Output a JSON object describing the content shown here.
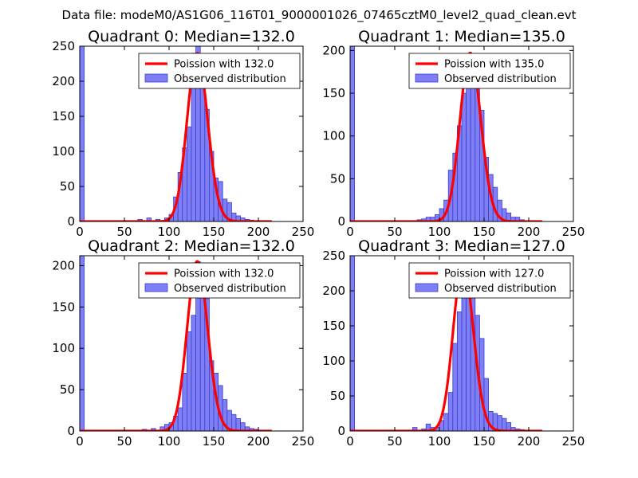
{
  "figure": {
    "suptitle": "Data file: modeM0/AS1G06_116T01_9000001026_07465cztM0_level2_quad_clean.evt"
  },
  "colors": {
    "bar_fill": "#7f7ff5",
    "bar_edge": "#3c3cd0",
    "poisson_line": "#ff0000"
  },
  "chart_data": [
    {
      "type": "bar",
      "title": "Quadrant 0: Median=132.0",
      "median": 132.0,
      "xlim": [
        0,
        250
      ],
      "ylim": [
        0,
        250
      ],
      "xticks": [
        0,
        50,
        100,
        150,
        200,
        250
      ],
      "yticks": [
        0,
        50,
        100,
        150,
        200,
        250
      ],
      "bin_width": 5,
      "histogram": {
        "name": "Observed distribution",
        "bin_starts": [
          0,
          65,
          75,
          85,
          95,
          100,
          105,
          110,
          115,
          120,
          125,
          130,
          135,
          140,
          145,
          150,
          155,
          160,
          165,
          170,
          175,
          180,
          185,
          190
        ],
        "counts": [
          250,
          3,
          5,
          3,
          5,
          10,
          35,
          70,
          105,
          135,
          240,
          250,
          190,
          160,
          100,
          62,
          57,
          32,
          27,
          12,
          8,
          5,
          3,
          2
        ]
      },
      "poisson": {
        "name": "Poission with 132.0",
        "mu": 132.0,
        "peak": 240
      },
      "legend": {
        "location": "upper right",
        "entries": [
          "Poission with 132.0",
          "Observed distribution"
        ]
      }
    },
    {
      "type": "bar",
      "title": "Quadrant 1: Median=135.0",
      "median": 135.0,
      "xlim": [
        0,
        250
      ],
      "ylim": [
        0,
        205
      ],
      "xticks": [
        0,
        50,
        100,
        150,
        200,
        250
      ],
      "yticks": [
        0,
        50,
        100,
        150,
        200
      ],
      "bin_width": 5,
      "histogram": {
        "name": "Observed distribution",
        "bin_starts": [
          0,
          75,
          80,
          85,
          90,
          95,
          100,
          105,
          110,
          115,
          120,
          125,
          130,
          135,
          140,
          145,
          150,
          155,
          160,
          165,
          170,
          175,
          180,
          185,
          190
        ],
        "counts": [
          205,
          2,
          3,
          5,
          5,
          8,
          15,
          25,
          60,
          80,
          112,
          150,
          195,
          175,
          160,
          130,
          75,
          55,
          40,
          25,
          15,
          10,
          5,
          5,
          2
        ]
      },
      "poisson": {
        "name": "Poission with 135.0",
        "mu": 135.0,
        "peak": 197
      },
      "legend": {
        "location": "upper right",
        "entries": [
          "Poission with 135.0",
          "Observed distribution"
        ]
      }
    },
    {
      "type": "bar",
      "title": "Quadrant 2: Median=132.0",
      "median": 132.0,
      "xlim": [
        0,
        250
      ],
      "ylim": [
        0,
        212
      ],
      "xticks": [
        0,
        50,
        100,
        150,
        200,
        250
      ],
      "yticks": [
        0,
        50,
        100,
        150,
        200
      ],
      "bin_width": 5,
      "histogram": {
        "name": "Observed distribution",
        "bin_starts": [
          0,
          70,
          80,
          90,
          95,
          100,
          105,
          110,
          115,
          120,
          125,
          130,
          135,
          140,
          145,
          150,
          155,
          160,
          165,
          170,
          175,
          180,
          185,
          190,
          195
        ],
        "counts": [
          212,
          2,
          3,
          5,
          8,
          10,
          18,
          28,
          70,
          120,
          140,
          205,
          200,
          160,
          85,
          70,
          55,
          38,
          25,
          20,
          15,
          10,
          5,
          3,
          2
        ]
      },
      "poisson": {
        "name": "Poission with 132.0",
        "mu": 132.0,
        "peak": 205
      },
      "legend": {
        "location": "upper right",
        "entries": [
          "Poission with 132.0",
          "Observed distribution"
        ]
      }
    },
    {
      "type": "bar",
      "title": "Quadrant 3: Median=127.0",
      "median": 127.0,
      "xlim": [
        0,
        250
      ],
      "ylim": [
        0,
        250
      ],
      "xticks": [
        0,
        50,
        100,
        150,
        200,
        250
      ],
      "yticks": [
        0,
        50,
        100,
        150,
        200,
        250
      ],
      "bin_width": 5,
      "histogram": {
        "name": "Observed distribution",
        "bin_starts": [
          0,
          70,
          80,
          85,
          90,
          95,
          100,
          105,
          110,
          115,
          120,
          125,
          130,
          135,
          140,
          145,
          150,
          155,
          160,
          165,
          170,
          175,
          180,
          185,
          190
        ],
        "counts": [
          250,
          5,
          3,
          10,
          5,
          5,
          15,
          25,
          55,
          125,
          170,
          190,
          238,
          190,
          165,
          132,
          75,
          28,
          25,
          22,
          18,
          12,
          5,
          3,
          2
        ]
      },
      "poisson": {
        "name": "Poission with 127.0",
        "mu": 127.0,
        "peak": 238
      },
      "legend": {
        "location": "upper right",
        "entries": [
          "Poission with 127.0",
          "Observed distribution"
        ]
      }
    }
  ]
}
